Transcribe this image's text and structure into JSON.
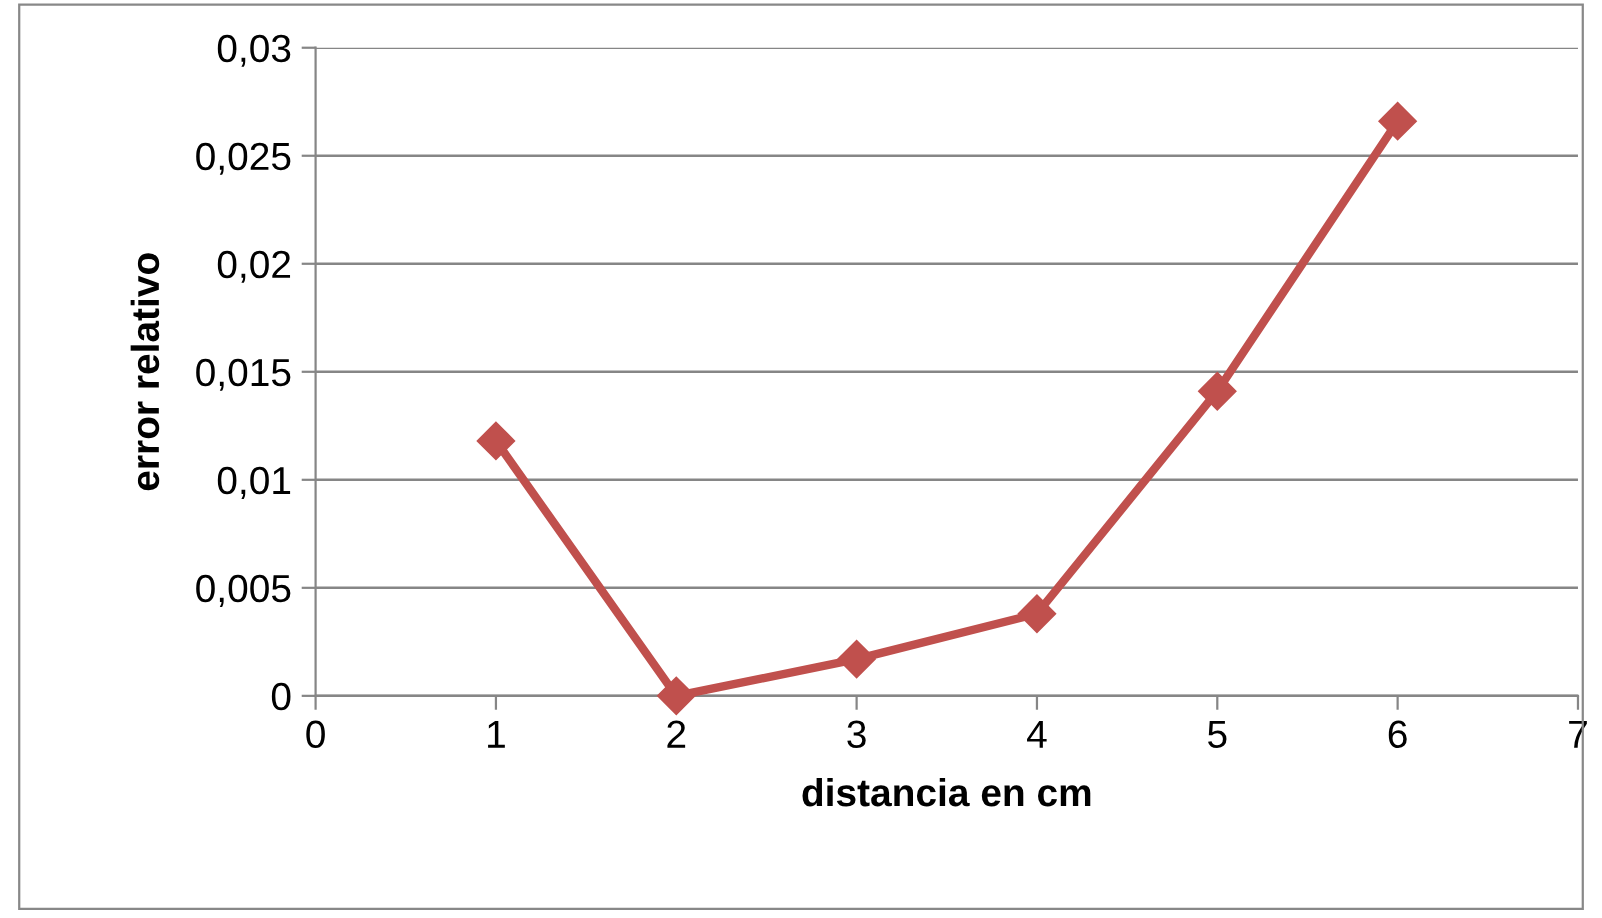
{
  "chart_data": {
    "type": "line",
    "xlabel": "distancia en cm",
    "ylabel": "error relativo",
    "x": [
      1,
      2,
      3,
      4,
      5,
      6
    ],
    "series": [
      {
        "color": "#c0504d",
        "values": [
          0.0118,
          0.0,
          0.0017,
          0.0038,
          0.0141,
          0.0266
        ]
      }
    ],
    "xlim": [
      0,
      7
    ],
    "xticks": [
      0,
      1,
      2,
      3,
      4,
      5,
      6,
      7
    ],
    "ylim": [
      0,
      0.03
    ],
    "yticks": [
      {
        "value": 0,
        "label": "0"
      },
      {
        "value": 0.005,
        "label": "0,005"
      },
      {
        "value": 0.01,
        "label": "0,01"
      },
      {
        "value": 0.015,
        "label": "0,015"
      },
      {
        "value": 0.02,
        "label": "0,02"
      },
      {
        "value": 0.025,
        "label": "0,025"
      },
      {
        "value": 0.03,
        "label": "0,03"
      }
    ],
    "grid": "y",
    "marker": "diamond",
    "line_style": "solid"
  }
}
